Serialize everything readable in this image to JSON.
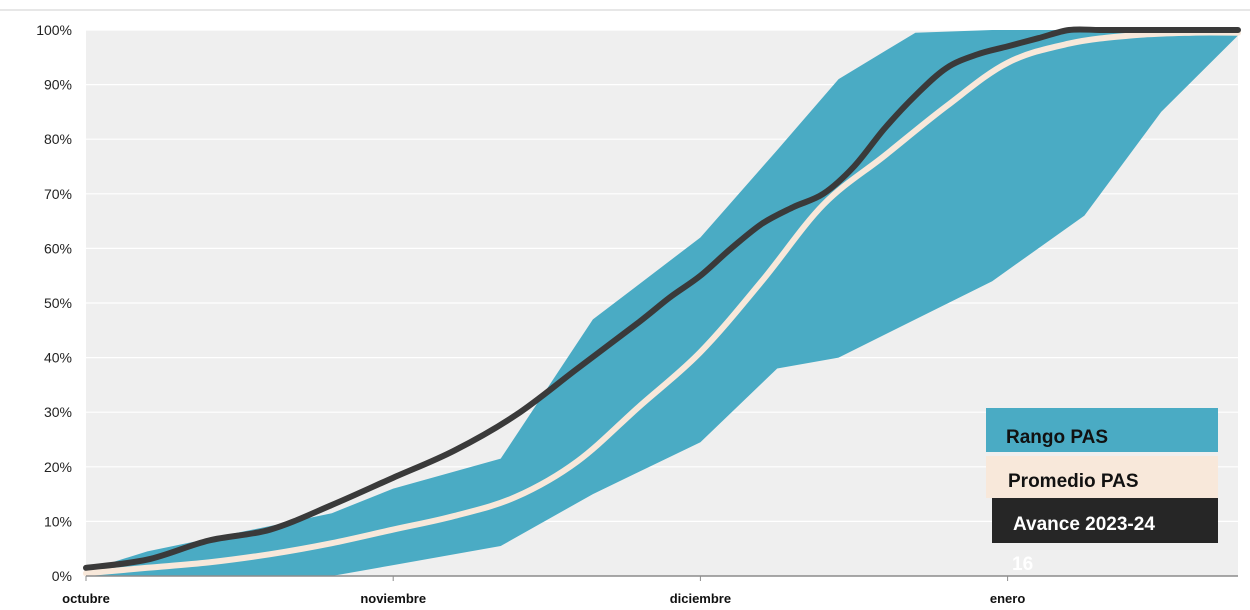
{
  "chart_data": {
    "type": "area",
    "title": "",
    "xlabel": "",
    "ylabel": "",
    "ylim": [
      0,
      100
    ],
    "y_ticks": [
      0,
      10,
      20,
      30,
      40,
      50,
      60,
      70,
      80,
      90,
      100
    ],
    "y_tick_labels": [
      "0%",
      "10%",
      "20%",
      "30%",
      "40%",
      "50%",
      "60%",
      "70%",
      "80%",
      "90%",
      "100%"
    ],
    "x_tick_labels": [
      "octubre",
      "noviembre",
      "diciembre",
      "enero"
    ],
    "x_tick_positions": [
      0,
      10,
      20,
      30
    ],
    "xlim": [
      0,
      37.5
    ],
    "grid": "horizontal",
    "background": "#efefef",
    "legend_position": "bottom-right",
    "overflow_label": "16",
    "series": [
      {
        "name": "Rango PAS",
        "kind": "band",
        "color": "#4aabc4",
        "x": [
          0,
          2,
          5,
          8,
          10,
          13.5,
          16.5,
          20,
          22.5,
          24.5,
          27,
          29.5,
          32.5,
          35,
          37.5
        ],
        "upper": [
          1,
          4.5,
          8,
          11.5,
          16,
          21.5,
          47,
          62,
          78,
          91,
          99.5,
          100,
          100,
          100,
          100
        ],
        "lower": [
          0,
          0,
          0,
          0,
          2,
          5.5,
          15,
          24.5,
          38,
          40,
          47,
          54,
          66,
          85,
          99
        ]
      },
      {
        "name": "Promedio PAS",
        "kind": "line",
        "color": "#f8e8da",
        "x": [
          0,
          2,
          4,
          6,
          8,
          10,
          12,
          14,
          16,
          18,
          20,
          22,
          24,
          26,
          28,
          30,
          32,
          34,
          36,
          37.5
        ],
        "values": [
          0.5,
          1.5,
          2.5,
          4,
          6,
          8.5,
          11,
          14.5,
          21,
          31,
          41,
          54,
          68,
          77,
          86,
          94,
          97.5,
          99,
          99.5,
          99.5
        ]
      },
      {
        "name": "Avance 2023-24",
        "kind": "line",
        "color": "#3a3a3a",
        "x": [
          0,
          2,
          4,
          6,
          8,
          10,
          12,
          14,
          16,
          18,
          19,
          20,
          21,
          22,
          23,
          24,
          25,
          26,
          27,
          28,
          29,
          30,
          31,
          32,
          33,
          34,
          35,
          36,
          37.5
        ],
        "values": [
          1.5,
          3,
          6.5,
          8.5,
          13,
          18,
          23,
          29.5,
          38,
          46.5,
          51,
          55,
          60,
          64.5,
          67.5,
          70,
          75,
          82,
          88,
          93,
          95.5,
          97,
          98.5,
          100,
          100,
          100,
          100,
          100,
          100
        ]
      }
    ]
  }
}
